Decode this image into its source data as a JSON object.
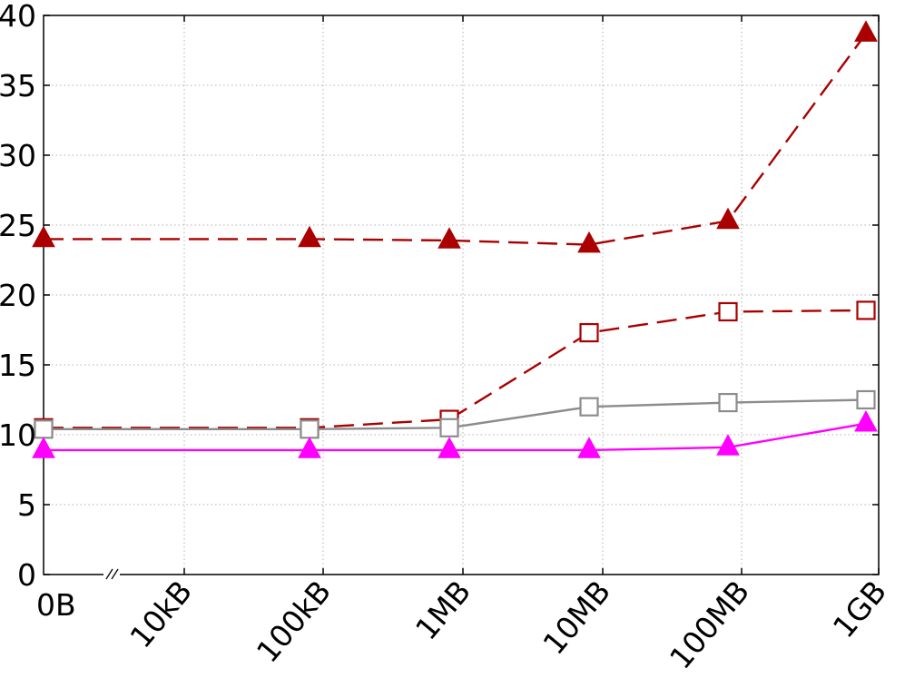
{
  "chart_data": {
    "type": "line",
    "title": "",
    "xlabel": "",
    "ylabel": "",
    "x_tick_labels": [
      "0B",
      "10kB",
      "100kB",
      "1MB",
      "10MB",
      "100MB",
      "1GB"
    ],
    "y_ticks": [
      0,
      5,
      10,
      15,
      20,
      25,
      30,
      35,
      40
    ],
    "ylim": [
      0,
      40
    ],
    "x_axis_break_after": "0B",
    "grid": true,
    "legend": "none",
    "series": [
      {
        "color": "#aa0000",
        "line_style": "dashed",
        "marker": "filled-triangle",
        "points": [
          {
            "x": "0B",
            "y": 24.0
          },
          {
            "x": "100kB",
            "y": 24.0
          },
          {
            "x": "1MB",
            "y": 23.9
          },
          {
            "x": "10MB",
            "y": 23.6
          },
          {
            "x": "100MB",
            "y": 25.3
          },
          {
            "x": "1GB",
            "y": 38.7
          }
        ]
      },
      {
        "color": "#aa0000",
        "line_style": "dashed",
        "marker": "hollow-square",
        "points": [
          {
            "x": "0B",
            "y": 10.5
          },
          {
            "x": "100kB",
            "y": 10.5
          },
          {
            "x": "1MB",
            "y": 11.1
          },
          {
            "x": "10MB",
            "y": 17.3
          },
          {
            "x": "100MB",
            "y": 18.8
          },
          {
            "x": "1GB",
            "y": 18.9
          }
        ]
      },
      {
        "color": "#8c8c8c",
        "line_style": "solid",
        "marker": "hollow-square",
        "points": [
          {
            "x": "0B",
            "y": 10.4
          },
          {
            "x": "100kB",
            "y": 10.4
          },
          {
            "x": "1MB",
            "y": 10.5
          },
          {
            "x": "10MB",
            "y": 12.0
          },
          {
            "x": "100MB",
            "y": 12.3
          },
          {
            "x": "1GB",
            "y": 12.5
          }
        ]
      },
      {
        "color": "#ff00ff",
        "line_style": "solid",
        "marker": "filled-triangle",
        "points": [
          {
            "x": "0B",
            "y": 8.9
          },
          {
            "x": "100kB",
            "y": 8.9
          },
          {
            "x": "1MB",
            "y": 8.9
          },
          {
            "x": "10MB",
            "y": 8.9
          },
          {
            "x": "100MB",
            "y": 9.1
          },
          {
            "x": "1GB",
            "y": 10.8
          }
        ]
      }
    ]
  }
}
